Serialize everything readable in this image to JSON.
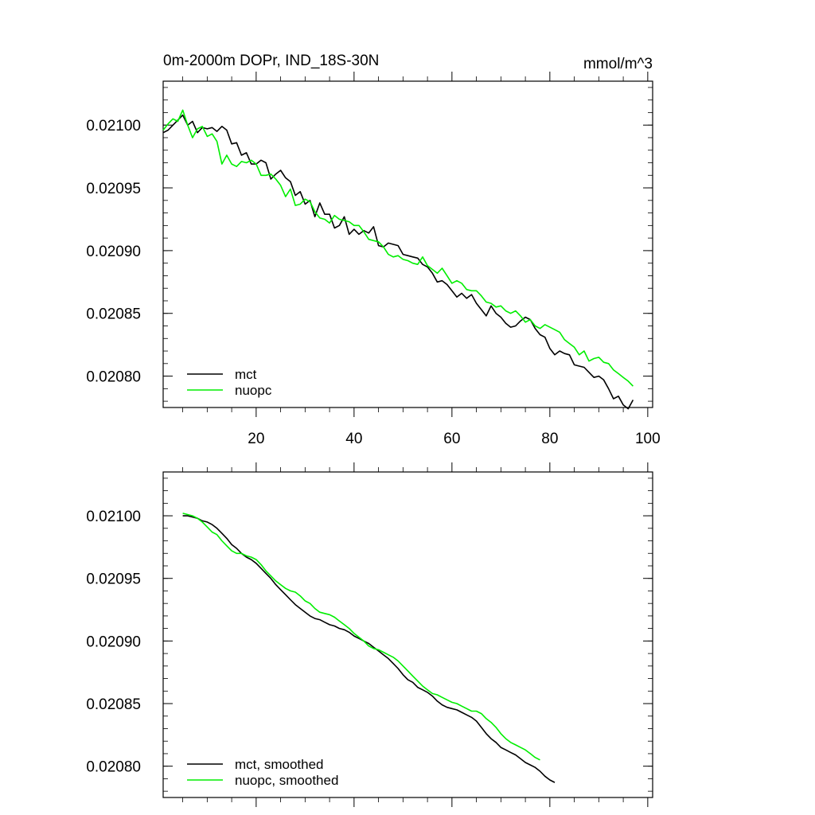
{
  "figure": {
    "title_left": "0m-2000m DOPr, IND_18S-30N",
    "title_right": "mmol/m^3"
  },
  "colors": {
    "mct": "#000000",
    "nuopc": "#00ee00"
  },
  "chart_data": [
    {
      "type": "line",
      "panel": "top",
      "x_range": [
        1,
        101
      ],
      "ylim": [
        0.020775,
        0.021035
      ],
      "y_ticks": [
        0.0208,
        0.02085,
        0.0209,
        0.02095,
        0.021
      ],
      "y_tick_labels": [
        "0.02080",
        "0.02085",
        "0.02090",
        "0.02095",
        "0.02100"
      ],
      "x_ticks": [
        20,
        40,
        60,
        80,
        100
      ],
      "x_tick_labels": [
        "20",
        "40",
        "60",
        "80",
        "100"
      ],
      "legend_position": "bottom-left",
      "series": [
        {
          "name": "mct",
          "color": "#000000",
          "x_start": 1,
          "values": [
            0.020994,
            0.020996,
            0.021,
            0.021004,
            0.021008,
            0.021,
            0.021003,
            0.020994,
            0.020998,
            0.020997,
            0.020998,
            0.020995,
            0.020999,
            0.020996,
            0.020985,
            0.020986,
            0.020976,
            0.020978,
            0.020969,
            0.020969,
            0.020972,
            0.02097,
            0.020957,
            0.020961,
            0.020964,
            0.020958,
            0.020955,
            0.020944,
            0.020947,
            0.020937,
            0.02094,
            0.020927,
            0.020938,
            0.020929,
            0.020929,
            0.020918,
            0.02092,
            0.020927,
            0.020913,
            0.020917,
            0.020913,
            0.020916,
            0.020914,
            0.020919,
            0.020904,
            0.020903,
            0.020906,
            0.020905,
            0.020904,
            0.020897,
            0.020896,
            0.020895,
            0.020894,
            0.020889,
            0.020887,
            0.020882,
            0.020875,
            0.020876,
            0.020873,
            0.020868,
            0.020863,
            0.020866,
            0.020862,
            0.020865,
            0.020858,
            0.020853,
            0.020848,
            0.020856,
            0.02085,
            0.020847,
            0.020842,
            0.020839,
            0.02084,
            0.020844,
            0.020847,
            0.020845,
            0.020838,
            0.020833,
            0.020831,
            0.020822,
            0.020817,
            0.02082,
            0.020818,
            0.020817,
            0.020809,
            0.020808,
            0.020807,
            0.020803,
            0.020799,
            0.0208,
            0.020797,
            0.02079,
            0.020782,
            0.020784,
            0.020777,
            0.020774,
            0.020781
          ]
        },
        {
          "name": "nuopc",
          "color": "#00ee00",
          "x_start": 1,
          "values": [
            0.020996,
            0.021001,
            0.021005,
            0.021003,
            0.021012,
            0.021,
            0.02099,
            0.020997,
            0.020999,
            0.020991,
            0.020993,
            0.020987,
            0.020969,
            0.020976,
            0.020969,
            0.020967,
            0.020971,
            0.02097,
            0.020972,
            0.020969,
            0.02096,
            0.02096,
            0.020961,
            0.020957,
            0.020952,
            0.020943,
            0.020949,
            0.020936,
            0.020937,
            0.020941,
            0.020939,
            0.020931,
            0.020926,
            0.020925,
            0.020922,
            0.020928,
            0.020925,
            0.020924,
            0.020923,
            0.02092,
            0.02092,
            0.020915,
            0.020909,
            0.020908,
            0.020907,
            0.020903,
            0.020897,
            0.020895,
            0.020896,
            0.020893,
            0.020892,
            0.02089,
            0.020889,
            0.020895,
            0.020888,
            0.020885,
            0.020882,
            0.020886,
            0.02088,
            0.020874,
            0.020876,
            0.020874,
            0.020869,
            0.020868,
            0.020868,
            0.020864,
            0.020859,
            0.020858,
            0.020855,
            0.020856,
            0.020852,
            0.02085,
            0.020852,
            0.020848,
            0.020843,
            0.020845,
            0.02084,
            0.020838,
            0.020841,
            0.020839,
            0.020837,
            0.020835,
            0.020829,
            0.020826,
            0.020823,
            0.020817,
            0.02082,
            0.020812,
            0.020814,
            0.020815,
            0.020811,
            0.02081,
            0.020805,
            0.020802,
            0.020799,
            0.020796,
            0.020792
          ]
        }
      ]
    },
    {
      "type": "line",
      "panel": "bottom",
      "x_range": [
        1,
        101
      ],
      "ylim": [
        0.020775,
        0.021035
      ],
      "y_ticks": [
        0.0208,
        0.02085,
        0.0209,
        0.02095,
        0.021
      ],
      "y_tick_labels": [
        "0.02080",
        "0.02085",
        "0.02090",
        "0.02095",
        "0.02100"
      ],
      "x_ticks": [
        20,
        40,
        60,
        80,
        100
      ],
      "x_tick_labels": [],
      "legend_position": "bottom-left",
      "series": [
        {
          "name": "mct, smoothed",
          "color": "#000000",
          "x_start": 5,
          "values": [
            0.021,
            0.021,
            0.020999,
            0.020998,
            0.020996,
            0.020995,
            0.020993,
            0.02099,
            0.020986,
            0.020982,
            0.020977,
            0.020974,
            0.02097,
            0.020967,
            0.020965,
            0.020962,
            0.020958,
            0.020954,
            0.02095,
            0.020945,
            0.020941,
            0.020937,
            0.020933,
            0.020929,
            0.020926,
            0.020923,
            0.02092,
            0.020918,
            0.020917,
            0.020915,
            0.020913,
            0.020912,
            0.02091,
            0.020909,
            0.020907,
            0.020904,
            0.020902,
            0.0209,
            0.020898,
            0.020895,
            0.020892,
            0.020889,
            0.020886,
            0.020882,
            0.020878,
            0.020873,
            0.020869,
            0.020867,
            0.020863,
            0.020861,
            0.020859,
            0.020856,
            0.020852,
            0.020849,
            0.020847,
            0.020846,
            0.020845,
            0.020843,
            0.020841,
            0.020839,
            0.020836,
            0.020831,
            0.020826,
            0.020822,
            0.020819,
            0.020815,
            0.020813,
            0.020811,
            0.020809,
            0.020806,
            0.020803,
            0.020801,
            0.020799,
            0.020796,
            0.020792,
            0.020789,
            0.020787
          ]
        },
        {
          "name": "nuopc, smoothed",
          "color": "#00ee00",
          "x_start": 5,
          "values": [
            0.021002,
            0.021001,
            0.021,
            0.020998,
            0.020995,
            0.020991,
            0.020987,
            0.020985,
            0.02098,
            0.020976,
            0.020972,
            0.02097,
            0.02097,
            0.020968,
            0.020967,
            0.020965,
            0.020961,
            0.020956,
            0.020952,
            0.020948,
            0.020945,
            0.020942,
            0.02094,
            0.020939,
            0.020936,
            0.020932,
            0.02093,
            0.020926,
            0.020923,
            0.020922,
            0.020921,
            0.020919,
            0.020916,
            0.020913,
            0.02091,
            0.020906,
            0.020903,
            0.0209,
            0.020896,
            0.020894,
            0.020893,
            0.020891,
            0.020889,
            0.020887,
            0.020884,
            0.02088,
            0.020876,
            0.020872,
            0.020868,
            0.020864,
            0.020861,
            0.020858,
            0.020857,
            0.020855,
            0.020853,
            0.020851,
            0.02085,
            0.020848,
            0.020846,
            0.020844,
            0.020844,
            0.020842,
            0.020838,
            0.020835,
            0.020831,
            0.020826,
            0.020822,
            0.020819,
            0.020817,
            0.020815,
            0.020813,
            0.02081,
            0.020807,
            0.020805
          ]
        }
      ]
    }
  ]
}
